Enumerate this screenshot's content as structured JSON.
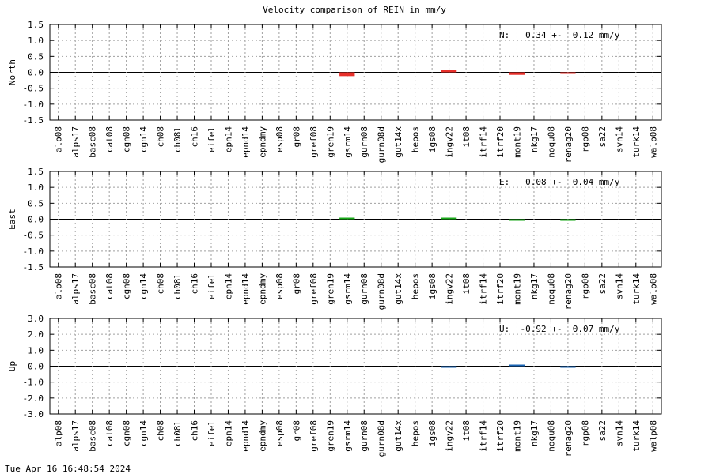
{
  "title": "Velocity comparison of REIN in mm/y",
  "footer_timestamp": "Tue Apr 16 16:48:54 2024",
  "chart_data": [
    {
      "type": "bar",
      "ylabel": "North",
      "annotation": "N:   0.34 +-  0.12 mm/y",
      "ylim": [
        -1.5,
        1.5
      ],
      "yticks": [
        "1.5",
        "1.0",
        "0.5",
        "0.0",
        "-0.5",
        "-1.0",
        "-1.5"
      ],
      "ytick_values": [
        1.5,
        1.0,
        0.5,
        0.0,
        -0.5,
        -1.0,
        -1.5
      ],
      "color": "#e8302b",
      "grid": true,
      "categories": [
        "alp08",
        "alps17",
        "basc08",
        "cat08",
        "cgn08",
        "cgn14",
        "ch08",
        "ch08l",
        "ch16",
        "eifel",
        "epn14",
        "epnd14",
        "epndmy",
        "esp08",
        "gr08",
        "gref08",
        "gren19",
        "gsrm14",
        "gurn08",
        "gurn08d",
        "gut14x",
        "hepos",
        "igs08",
        "ingv22",
        "it08",
        "itrf14",
        "itrf20",
        "mont19",
        "nkg17",
        "noqu08",
        "renag20",
        "rgp08",
        "sa22",
        "svn14",
        "turk14",
        "walp08"
      ],
      "values": [
        null,
        null,
        null,
        null,
        null,
        null,
        null,
        null,
        null,
        null,
        null,
        null,
        null,
        null,
        null,
        null,
        null,
        -0.12,
        null,
        null,
        null,
        null,
        null,
        0.07,
        null,
        null,
        null,
        -0.08,
        null,
        null,
        -0.04,
        null,
        null,
        null,
        null,
        null
      ]
    },
    {
      "type": "bar",
      "ylabel": "East",
      "annotation": "E:   0.08 +-  0.04 mm/y",
      "ylim": [
        -1.5,
        1.5
      ],
      "yticks": [
        "1.5",
        "1.0",
        "0.5",
        "0.0",
        "-0.5",
        "-1.0",
        "-1.5"
      ],
      "ytick_values": [
        1.5,
        1.0,
        0.5,
        0.0,
        -0.5,
        -1.0,
        -1.5
      ],
      "color": "#1aaa1a",
      "grid": true,
      "categories": [
        "alp08",
        "alps17",
        "basc08",
        "cat08",
        "cgn08",
        "cgn14",
        "ch08",
        "ch08l",
        "ch16",
        "eifel",
        "epn14",
        "epnd14",
        "epndmy",
        "esp08",
        "gr08",
        "gref08",
        "gren19",
        "gsrm14",
        "gurn08",
        "gurn08d",
        "gut14x",
        "hepos",
        "igs08",
        "ingv22",
        "it08",
        "itrf14",
        "itrf20",
        "mont19",
        "nkg17",
        "noqu08",
        "renag20",
        "rgp08",
        "sa22",
        "svn14",
        "turk14",
        "walp08"
      ],
      "values": [
        null,
        null,
        null,
        null,
        null,
        null,
        null,
        null,
        null,
        null,
        null,
        null,
        null,
        null,
        null,
        null,
        null,
        0.04,
        null,
        null,
        null,
        null,
        null,
        0.01,
        null,
        null,
        null,
        -0.03,
        null,
        null,
        -0.05,
        null,
        null,
        null,
        null,
        null
      ]
    },
    {
      "type": "bar",
      "ylabel": "Up",
      "annotation": "U:  -0.92 +-  0.07 mm/y",
      "ylim": [
        -3.0,
        3.0
      ],
      "yticks": [
        "3.0",
        "2.0",
        "1.0",
        "0.0",
        "-1.0",
        "-2.0",
        "-3.0"
      ],
      "ytick_values": [
        3.0,
        2.0,
        1.0,
        0.0,
        -1.0,
        -2.0,
        -3.0
      ],
      "color": "#1a64b4",
      "grid": true,
      "categories": [
        "alp08",
        "alps17",
        "basc08",
        "cat08",
        "cgn08",
        "cgn14",
        "ch08",
        "ch08l",
        "ch16",
        "eifel",
        "epn14",
        "epnd14",
        "epndmy",
        "esp08",
        "gr08",
        "gref08",
        "gren19",
        "gsrm14",
        "gurn08",
        "gurn08d",
        "gut14x",
        "hepos",
        "igs08",
        "ingv22",
        "it08",
        "itrf14",
        "itrf20",
        "mont19",
        "nkg17",
        "noqu08",
        "renag20",
        "rgp08",
        "sa22",
        "svn14",
        "turk14",
        "walp08"
      ],
      "values": [
        null,
        null,
        null,
        null,
        null,
        null,
        null,
        null,
        null,
        null,
        null,
        null,
        null,
        null,
        null,
        null,
        null,
        null,
        null,
        null,
        null,
        null,
        null,
        -0.04,
        null,
        null,
        null,
        0.03,
        null,
        null,
        -0.08,
        null,
        null,
        null,
        null,
        null
      ]
    }
  ]
}
